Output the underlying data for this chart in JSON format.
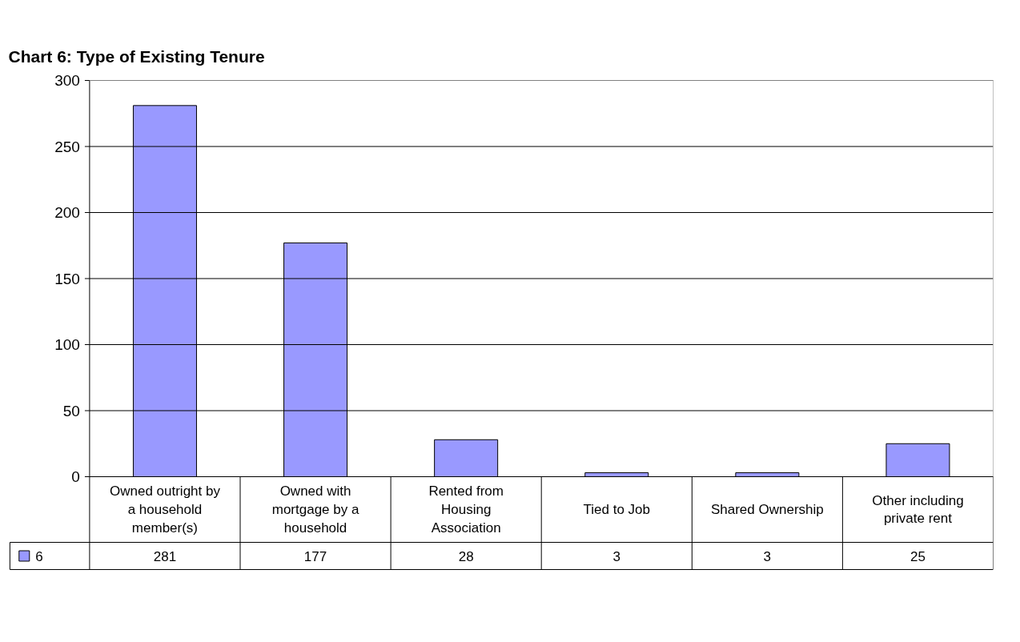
{
  "chart_data": {
    "type": "bar",
    "title": "Chart 6: Type of Existing Tenure",
    "categories": [
      "Owned outright by a household member(s)",
      "Owned with mortgage by a household",
      "Rented from Housing Association",
      "Tied to Job",
      "Shared Ownership",
      "Other including private rent"
    ],
    "series": [
      {
        "name": "6",
        "color": "#9999ff",
        "values": [
          281,
          177,
          28,
          3,
          3,
          25
        ]
      }
    ],
    "ylim": [
      0,
      300
    ],
    "yticks": [
      0,
      50,
      100,
      150,
      200,
      250,
      300
    ],
    "grid": "y",
    "data_labels": true
  }
}
